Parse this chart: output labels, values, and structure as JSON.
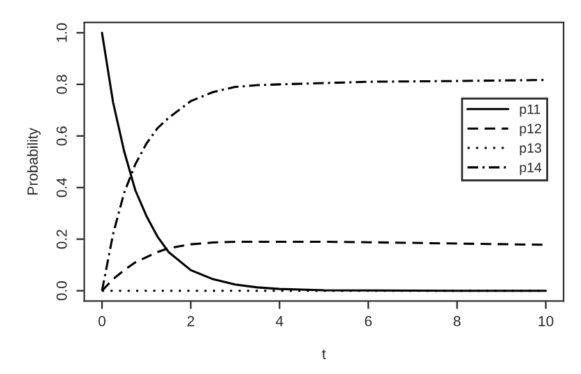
{
  "chart_data": {
    "type": "line",
    "xlabel": "t",
    "ylabel": "Probability",
    "x": [
      0,
      0.25,
      0.5,
      0.75,
      1,
      1.25,
      1.5,
      2,
      2.5,
      3,
      3.5,
      4,
      5,
      6,
      8,
      10
    ],
    "series": [
      {
        "name": "p11",
        "color": "#000000",
        "line_style": "solid",
        "values": [
          1.0,
          0.73,
          0.54,
          0.39,
          0.29,
          0.21,
          0.15,
          0.08,
          0.045,
          0.024,
          0.013,
          0.007,
          0.002,
          0.001,
          0.0,
          0.0
        ]
      },
      {
        "name": "p12",
        "color": "#000000",
        "line_style": "dashed",
        "values": [
          0.0,
          0.045,
          0.08,
          0.11,
          0.13,
          0.15,
          0.165,
          0.18,
          0.187,
          0.19,
          0.19,
          0.19,
          0.19,
          0.188,
          0.183,
          0.178
        ]
      },
      {
        "name": "p13",
        "color": "#000000",
        "line_style": "dotted",
        "values": [
          0,
          0,
          0,
          0,
          0,
          0,
          0,
          0,
          0,
          0,
          0,
          0,
          0,
          0,
          0,
          0
        ]
      },
      {
        "name": "p14",
        "color": "#000000",
        "line_style": "dashdot",
        "values": [
          0.0,
          0.22,
          0.38,
          0.49,
          0.57,
          0.63,
          0.67,
          0.735,
          0.77,
          0.79,
          0.797,
          0.8,
          0.805,
          0.81,
          0.813,
          0.817
        ]
      }
    ],
    "xlim": [
      -0.4,
      10.4
    ],
    "ylim": [
      -0.04,
      1.04
    ],
    "xticks": [
      0,
      2,
      4,
      6,
      8,
      10
    ],
    "yticks": [
      {
        "value": 0,
        "label": "0.0"
      },
      0.2,
      0.4,
      0.6,
      0.8,
      {
        "value": 1,
        "label": "1.0"
      }
    ],
    "grid": false,
    "legend": "right"
  }
}
